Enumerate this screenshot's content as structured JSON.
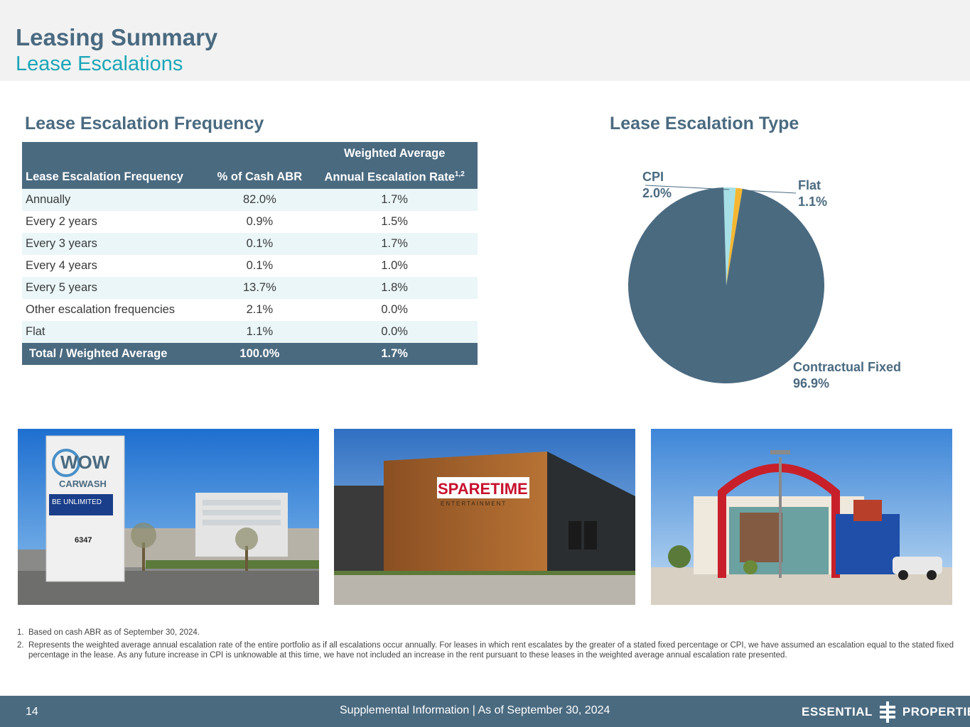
{
  "header": {
    "title": "Leasing Summary",
    "subtitle": "Lease Escalations"
  },
  "frequency_section": {
    "title": "Lease Escalation Frequency",
    "table": {
      "header_top": "Weighted Average",
      "columns": [
        "Lease Escalation Frequency",
        "% of Cash ABR",
        "Annual Escalation Rate"
      ],
      "column3_superscript": "1,2",
      "rows": [
        {
          "label": "Annually",
          "abr": "82.0%",
          "rate": "1.7%"
        },
        {
          "label": "Every 2 years",
          "abr": "0.9%",
          "rate": "1.5%"
        },
        {
          "label": "Every 3 years",
          "abr": "0.1%",
          "rate": "1.7%"
        },
        {
          "label": "Every 4 years",
          "abr": "0.1%",
          "rate": "1.0%"
        },
        {
          "label": "Every 5 years",
          "abr": "13.7%",
          "rate": "1.8%"
        },
        {
          "label": "Other escalation frequencies",
          "abr": "2.1%",
          "rate": "0.0%"
        },
        {
          "label": "Flat",
          "abr": "1.1%",
          "rate": "0.0%"
        }
      ],
      "total": {
        "label": "Total / Weighted Average",
        "abr": "100.0%",
        "rate": "1.7%"
      }
    }
  },
  "type_section": {
    "title": "Lease Escalation Type"
  },
  "chart_data": {
    "type": "pie",
    "title": "Lease Escalation Type",
    "slices": [
      {
        "label": "Contractual Fixed",
        "value": 96.9,
        "display": "96.9%",
        "color": "#4a6a80"
      },
      {
        "label": "CPI",
        "value": 2.0,
        "display": "2.0%",
        "color": "#a6e0e6"
      },
      {
        "label": "Flat",
        "value": 1.1,
        "display": "1.1%",
        "color": "#f5b731"
      }
    ]
  },
  "photos": {
    "photo1_sign_top": "WOW",
    "photo1_sign_mid": "CARWASH",
    "photo1_screen": "BE UNLIMITED",
    "photo1_number": "6347",
    "photo2_sign": "SPARETIME",
    "photo2_subsign": "ENTERTAINMENT"
  },
  "footnotes": [
    {
      "num": "1.",
      "text": "Based on cash ABR as of September 30, 2024."
    },
    {
      "num": "2.",
      "text": "Represents the weighted average annual escalation rate of the entire portfolio as if all escalations occur annually. For leases in which rent escalates by the greater of a stated fixed percentage or CPI, we have assumed an escalation equal to the stated fixed percentage in the lease. As any future increase in CPI is unknowable at this time, we have not included an increase in the rent pursuant to these leases in the weighted average annual escalation rate presented."
    }
  ],
  "footer": {
    "page_number": "14",
    "center_text": "Supplemental Information |  As of September 30, 2024",
    "logo_left": "ESSENTIAL",
    "logo_right": "PROPERTIES"
  },
  "colors": {
    "primary": "#4a6a80",
    "accent": "#1aa6b7",
    "row_alt": "#eaf6f8"
  }
}
